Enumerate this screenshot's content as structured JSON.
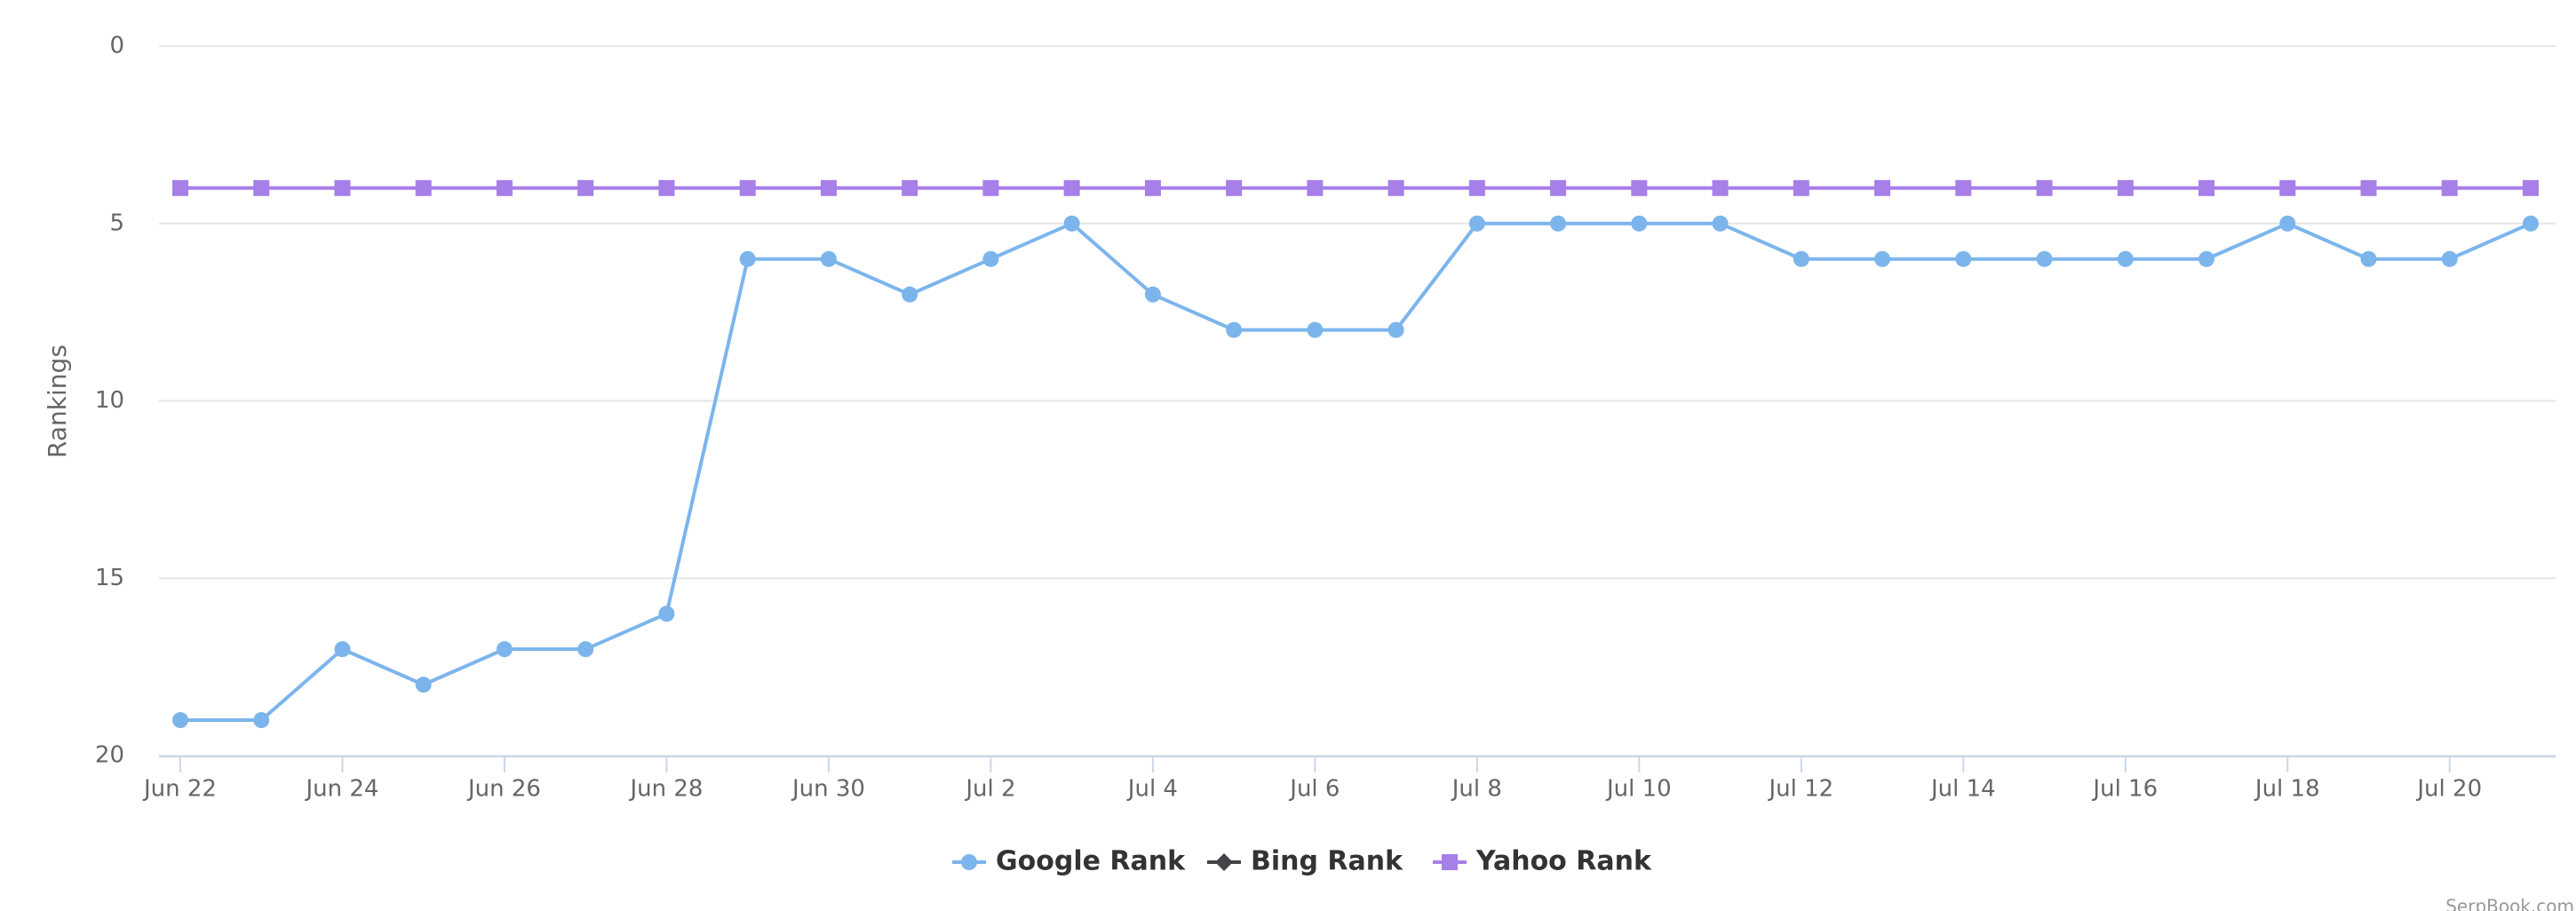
{
  "chart_data": {
    "type": "line",
    "y_label": "Rankings",
    "categories": [
      "Jun 22",
      null,
      "Jun 24",
      null,
      "Jun 26",
      null,
      "Jun 28",
      null,
      "Jun 30",
      null,
      "Jul 2",
      null,
      "Jul 4",
      null,
      "Jul 6",
      null,
      "Jul 8",
      null,
      "Jul 10",
      null,
      "Jul 12",
      null,
      "Jul 14",
      null,
      "Jul 16",
      null,
      "Jul 18",
      null,
      "Jul 20",
      null
    ],
    "series": [
      {
        "name": "Google Rank",
        "color": "#7cb5ec",
        "marker": "circle",
        "values": [
          19,
          19,
          17,
          18,
          17,
          17,
          16,
          6,
          6,
          7,
          6,
          5,
          7,
          8,
          8,
          8,
          5,
          5,
          5,
          5,
          6,
          6,
          6,
          6,
          6,
          6,
          5,
          6,
          6,
          5
        ]
      },
      {
        "name": "Bing Rank",
        "color": "#434348",
        "marker": "diamond",
        "values": [
          null,
          null,
          null,
          null,
          null,
          null,
          null,
          null,
          null,
          null,
          null,
          null,
          null,
          null,
          null,
          null,
          null,
          null,
          null,
          null,
          null,
          null,
          null,
          null,
          null,
          null,
          null,
          null,
          null,
          null
        ]
      },
      {
        "name": "Yahoo Rank",
        "color": "#a67fe8",
        "marker": "square",
        "values": [
          4,
          4,
          4,
          4,
          4,
          4,
          4,
          4,
          4,
          4,
          4,
          4,
          4,
          4,
          4,
          4,
          4,
          4,
          4,
          4,
          4,
          4,
          4,
          4,
          4,
          4,
          4,
          4,
          4,
          4
        ]
      }
    ],
    "ylim": [
      0,
      20
    ],
    "yticks": [
      0,
      5,
      10,
      15,
      20
    ],
    "y_reversed": true,
    "grid": true,
    "legend": "bottom",
    "credit": "SerpBook.com"
  }
}
